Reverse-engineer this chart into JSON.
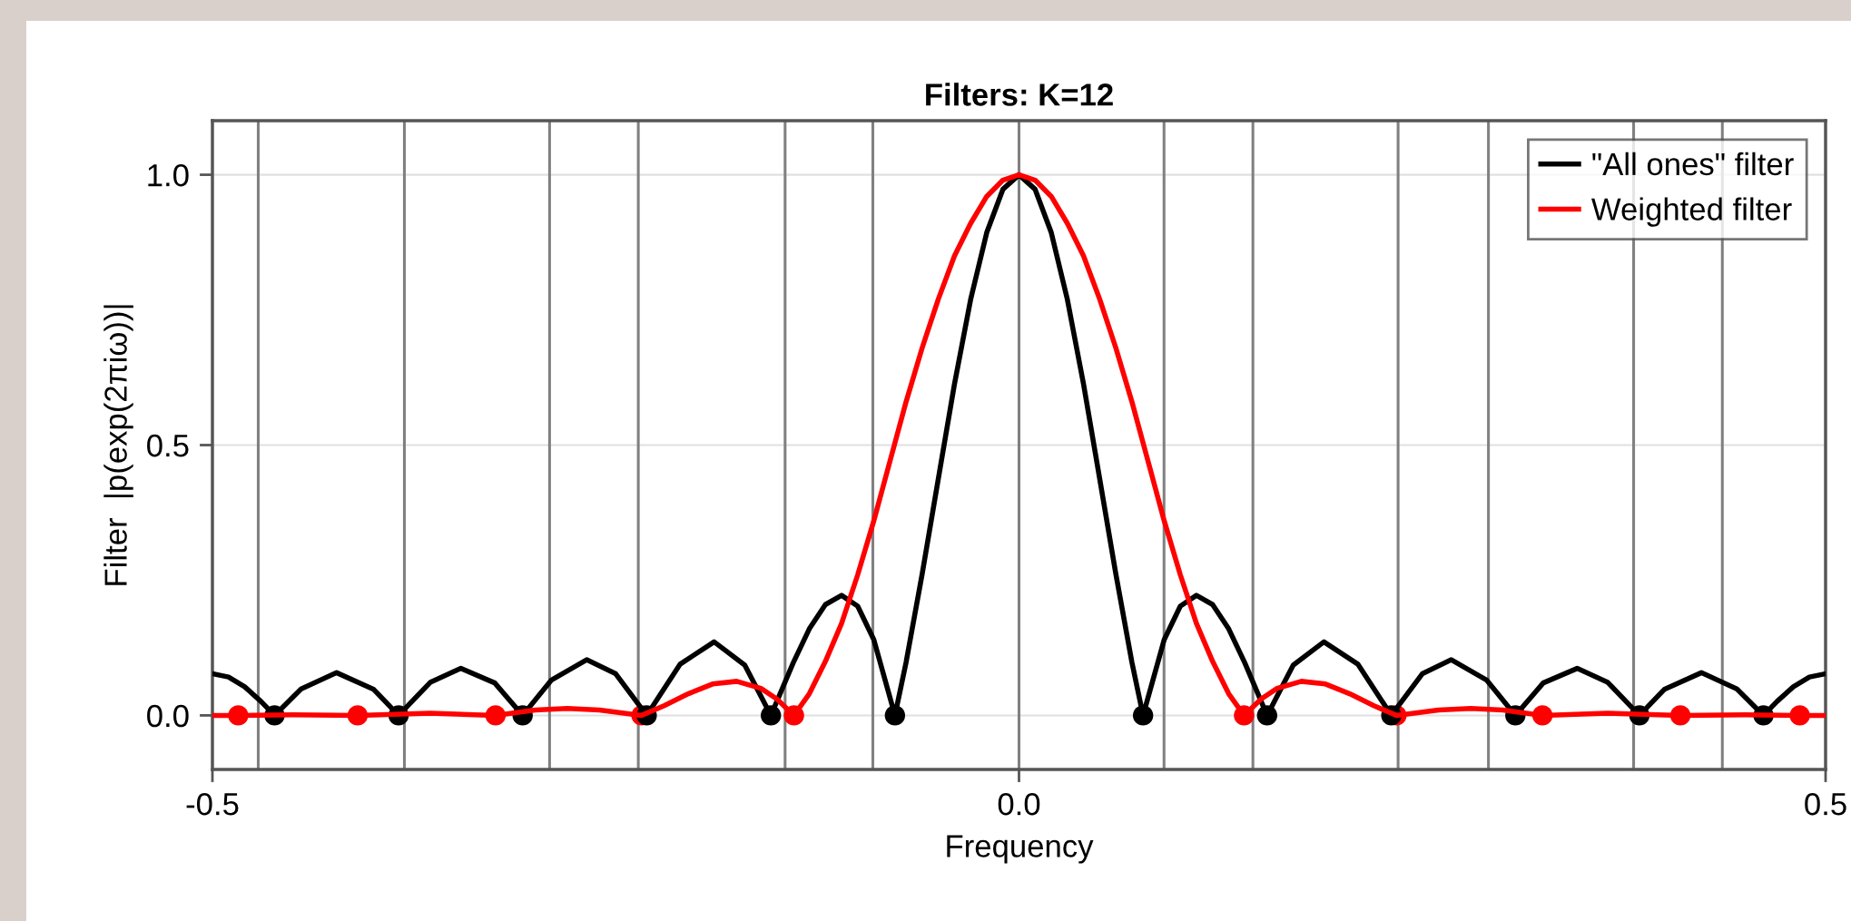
{
  "chart_data": {
    "type": "line",
    "title": "Filters: K=12",
    "xlabel": "Frequency",
    "ylabel": "Filter  |p(exp(2πiω))|",
    "xlim": [
      -0.5,
      0.5
    ],
    "xticks": [
      -0.5,
      {
        "value": 0,
        "label": "0.0"
      },
      0.5
    ],
    "ylim": [
      -0.1,
      1.1
    ],
    "yticks": [
      {
        "value": 0,
        "label": "0.0"
      },
      0.5,
      {
        "value": 1,
        "label": "1.0"
      }
    ],
    "grid": "y",
    "legend": "top right",
    "series": [
      {
        "name": "\"All ones\" filter",
        "color": "#000000",
        "x": [
          -0.5,
          -0.49,
          -0.48,
          -0.47,
          -0.4615,
          -0.445,
          -0.423,
          -0.4,
          -0.3846,
          -0.365,
          -0.346,
          -0.325,
          -0.3077,
          -0.29,
          -0.268,
          -0.25,
          -0.2308,
          -0.21,
          -0.189,
          -0.17,
          -0.1538,
          -0.14,
          -0.13,
          -0.12,
          -0.11,
          -0.1,
          -0.09,
          -0.0769,
          -0.07,
          -0.06,
          -0.05,
          -0.04,
          -0.03,
          -0.02,
          -0.01,
          0,
          0.01,
          0.02,
          0.03,
          0.04,
          0.05,
          0.06,
          0.07,
          0.0769,
          0.09,
          0.1,
          0.11,
          0.12,
          0.13,
          0.14,
          0.1538,
          0.17,
          0.189,
          0.21,
          0.2308,
          0.25,
          0.268,
          0.29,
          0.3077,
          0.325,
          0.346,
          0.365,
          0.3846,
          0.4,
          0.423,
          0.445,
          0.4615,
          0.47,
          0.48,
          0.49,
          0.5
        ],
        "values": [
          0.077,
          0.071,
          0.053,
          0.026,
          0,
          0.049,
          0.079,
          0.048,
          0,
          0.061,
          0.087,
          0.06,
          0,
          0.065,
          0.103,
          0.077,
          0,
          0.095,
          0.136,
          0.093,
          0,
          0.097,
          0.16,
          0.205,
          0.222,
          0.202,
          0.14,
          0,
          0.098,
          0.262,
          0.438,
          0.613,
          0.769,
          0.893,
          0.973,
          1.0,
          0.973,
          0.893,
          0.769,
          0.613,
          0.438,
          0.262,
          0.098,
          0,
          0.14,
          0.202,
          0.222,
          0.205,
          0.16,
          0.097,
          0,
          0.093,
          0.136,
          0.095,
          0,
          0.077,
          0.103,
          0.065,
          0,
          0.06,
          0.087,
          0.061,
          0,
          0.048,
          0.079,
          0.049,
          0,
          0.026,
          0.053,
          0.071,
          0.077
        ]
      },
      {
        "name": "Weighted filter",
        "color": "#ff0000",
        "x": [
          -0.5,
          -0.484,
          -0.45,
          -0.41,
          -0.365,
          -0.3245,
          -0.3,
          -0.28,
          -0.26,
          -0.234,
          -0.22,
          -0.205,
          -0.19,
          -0.175,
          -0.16,
          -0.15,
          -0.1395,
          -0.13,
          -0.12,
          -0.11,
          -0.1,
          -0.09,
          -0.08,
          -0.07,
          -0.06,
          -0.05,
          -0.04,
          -0.03,
          -0.02,
          -0.01,
          0,
          0.01,
          0.02,
          0.03,
          0.04,
          0.05,
          0.06,
          0.07,
          0.08,
          0.09,
          0.1,
          0.11,
          0.12,
          0.13,
          0.1395,
          0.15,
          0.16,
          0.175,
          0.19,
          0.205,
          0.22,
          0.234,
          0.26,
          0.28,
          0.3,
          0.3245,
          0.365,
          0.41,
          0.45,
          0.484,
          0.5
        ],
        "values": [
          0,
          0,
          0.001,
          0,
          0.004,
          0,
          0.01,
          0.013,
          0.01,
          0,
          0.018,
          0.04,
          0.058,
          0.063,
          0.05,
          0.03,
          0,
          0.04,
          0.1,
          0.17,
          0.26,
          0.36,
          0.47,
          0.58,
          0.68,
          0.77,
          0.85,
          0.91,
          0.96,
          0.99,
          1.0,
          0.99,
          0.96,
          0.91,
          0.85,
          0.77,
          0.68,
          0.58,
          0.47,
          0.36,
          0.26,
          0.17,
          0.1,
          0.04,
          0,
          0.03,
          0.05,
          0.063,
          0.058,
          0.04,
          0.018,
          0,
          0.01,
          0.013,
          0.01,
          0,
          0.004,
          0,
          0.001,
          0,
          0
        ]
      },
      {
        "color": "#000000",
        "type": "scatter",
        "marker": "circle",
        "x": [
          -0.4615,
          -0.3846,
          -0.3077,
          -0.2308,
          -0.1538,
          -0.0769,
          0.0769,
          0.1538,
          0.2308,
          0.3077,
          0.3846,
          0.4615
        ],
        "values": [
          0,
          0,
          0,
          0,
          0,
          0,
          0,
          0,
          0,
          0,
          0,
          0
        ]
      },
      {
        "color": "#ff0000",
        "type": "scatter",
        "marker": "circle",
        "x": [
          -0.484,
          -0.41,
          -0.3245,
          -0.234,
          -0.1395,
          0.1395,
          0.234,
          0.3245,
          0.41,
          0.484
        ],
        "values": [
          0,
          0,
          0,
          0,
          0,
          0,
          0,
          0,
          0,
          0
        ]
      }
    ],
    "ref_lines": [
      {
        "axis": "x",
        "value": -0.4716,
        "color": "#808080"
      },
      {
        "axis": "x",
        "value": -0.381,
        "color": "#808080"
      },
      {
        "axis": "x",
        "value": -0.291,
        "color": "#808080"
      },
      {
        "axis": "x",
        "value": -0.236,
        "color": "#808080"
      },
      {
        "axis": "x",
        "value": -0.145,
        "color": "#808080"
      },
      {
        "axis": "x",
        "value": -0.0906,
        "color": "#808080"
      },
      {
        "axis": "x",
        "value": 0,
        "color": "#808080"
      },
      {
        "axis": "x",
        "value": 0.0899,
        "color": "#808080"
      },
      {
        "axis": "x",
        "value": 0.145,
        "color": "#808080"
      },
      {
        "axis": "x",
        "value": 0.235,
        "color": "#808080"
      },
      {
        "axis": "x",
        "value": 0.291,
        "color": "#808080"
      },
      {
        "axis": "x",
        "value": 0.381,
        "color": "#808080"
      },
      {
        "axis": "x",
        "value": 0.436,
        "color": "#808080"
      }
    ]
  }
}
